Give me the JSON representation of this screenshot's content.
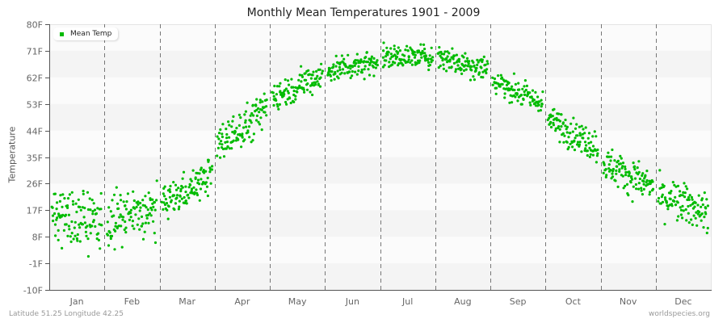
{
  "title": "Monthly Mean Temperatures 1901 - 2009",
  "footer": {
    "location": "Latitude 51.25 Longitude 42.25",
    "source": "worldspecies.org"
  },
  "legend": {
    "label": "Mean Temp",
    "color": "#00bb00"
  },
  "chart_data": {
    "type": "scatter",
    "title": "Monthly Mean Temperatures 1901 - 2009",
    "xlabel": "",
    "ylabel": "Temperature",
    "ylim": [
      -10,
      80
    ],
    "yticks": [
      "-10F",
      "-1F",
      "8F",
      "17F",
      "26F",
      "35F",
      "44F",
      "53F",
      "62F",
      "71F",
      "80F"
    ],
    "ytick_values": [
      -10,
      -1,
      8,
      17,
      26,
      35,
      44,
      53,
      62,
      71,
      80
    ],
    "categories": [
      "Jan",
      "Feb",
      "Mar",
      "Apr",
      "May",
      "Jun",
      "Jul",
      "Aug",
      "Sep",
      "Oct",
      "Nov",
      "Dec"
    ],
    "years": [
      1901,
      2009
    ],
    "points_per_month": 109,
    "grid": {
      "horizontal_bands": true,
      "vertical_dashed_month_separators": true
    },
    "legend_position": "top-left",
    "series": [
      {
        "name": "Mean Temp",
        "color": "#00bb00",
        "monthly_stats": [
          {
            "month": "Jan",
            "min": -2,
            "mean": 14,
            "max": 32
          },
          {
            "month": "Feb",
            "min": -4,
            "mean": 15,
            "max": 30
          },
          {
            "month": "Mar",
            "min": 14,
            "mean": 24,
            "max": 35
          },
          {
            "month": "Apr",
            "min": 33,
            "mean": 45,
            "max": 57
          },
          {
            "month": "May",
            "min": 51,
            "mean": 59,
            "max": 68
          },
          {
            "month": "Jun",
            "min": 58,
            "mean": 66,
            "max": 74
          },
          {
            "month": "Jul",
            "min": 63,
            "mean": 69,
            "max": 77
          },
          {
            "month": "Aug",
            "min": 60,
            "mean": 67,
            "max": 76
          },
          {
            "month": "Sep",
            "min": 50,
            "mean": 57,
            "max": 65
          },
          {
            "month": "Oct",
            "min": 33,
            "mean": 43,
            "max": 52
          },
          {
            "month": "Nov",
            "min": 17,
            "mean": 29,
            "max": 38
          },
          {
            "month": "Dec",
            "min": 7,
            "mean": 19,
            "max": 31
          }
        ]
      }
    ]
  }
}
